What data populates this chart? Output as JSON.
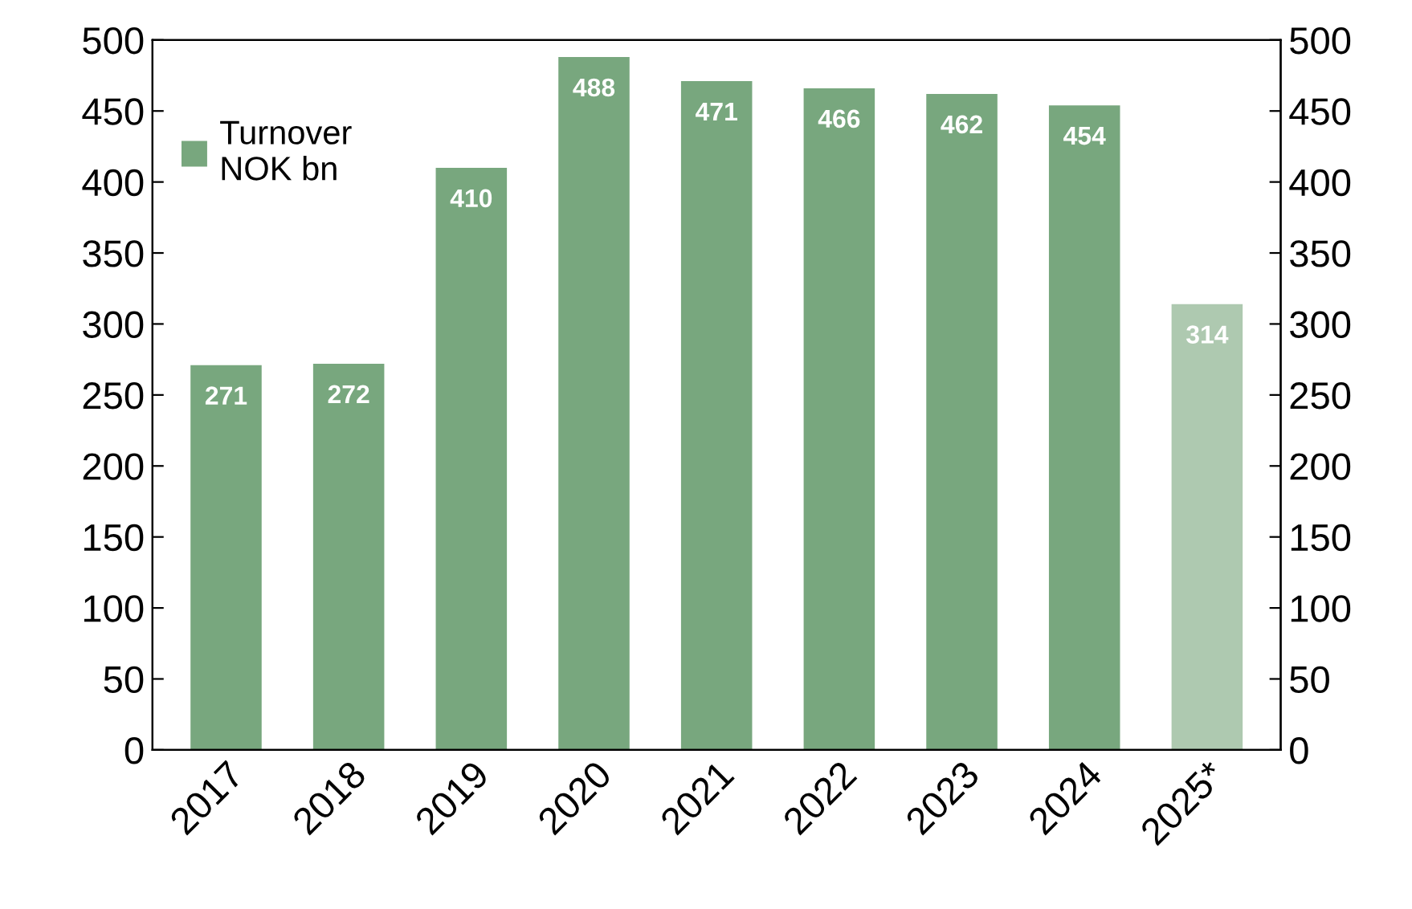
{
  "chart_data": {
    "type": "bar",
    "categories": [
      "2017",
      "2018",
      "2019",
      "2020",
      "2021",
      "2022",
      "2023",
      "2024",
      "2025*"
    ],
    "series": [
      {
        "name": "Turnover\nNOK bn",
        "color": "#78a77e",
        "colors": [
          "#78a77e",
          "#78a77e",
          "#78a77e",
          "#78a77e",
          "#78a77e",
          "#78a77e",
          "#78a77e",
          "#78a77e",
          "#aec9b0"
        ],
        "values": [
          271,
          272,
          410,
          488,
          471,
          466,
          462,
          454,
          314
        ]
      }
    ],
    "ylim": [
      0,
      500
    ],
    "yticks": [
      0,
      50,
      100,
      150,
      200,
      250,
      300,
      350,
      400,
      450,
      500
    ],
    "y2lim": [
      0,
      500
    ],
    "y2ticks": [
      0,
      50,
      100,
      150,
      200,
      250,
      300,
      350,
      400,
      450,
      500
    ],
    "data_labels": true,
    "legend": "top left",
    "grid": false
  }
}
